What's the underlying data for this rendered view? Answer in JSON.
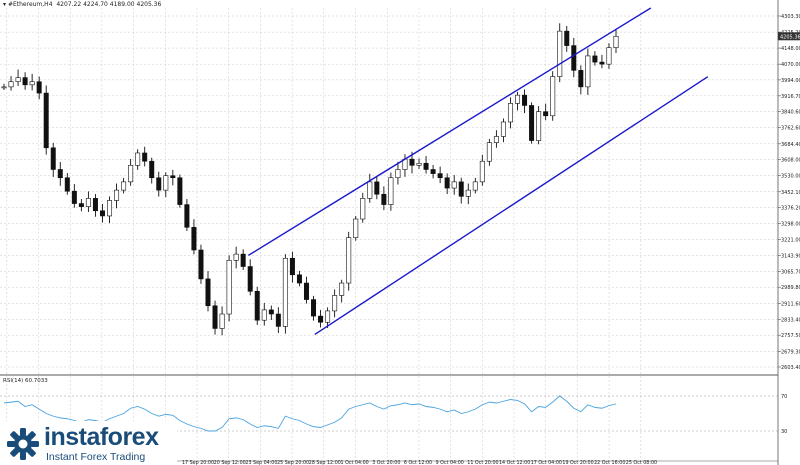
{
  "header": {
    "symbol": "#Ethereum,H4",
    "ohlc": "4207.22 4224.70 4189.00 4205.36"
  },
  "rsi_header": "RSI(14) 60.7033",
  "logo": {
    "brand": "instaforex",
    "tagline": "Instant Forex Trading"
  },
  "colors": {
    "channel": "#1a1acc",
    "candle": "#111111",
    "rsi": "#4aa3df",
    "grid": "#c9c9c9",
    "price_tag_bg": "#333333"
  },
  "current_price_label": "4205.36",
  "chart_data": {
    "type": "candlestick",
    "price_axis": {
      "ticks": [
        "4303.30",
        "4225.20",
        "4148.00",
        "4070.00",
        "3994.00",
        "3916.70",
        "3840.60",
        "3762.60",
        "3684.40",
        "3608.00",
        "3530.00",
        "3452.10",
        "3376.20",
        "3298.00",
        "3221.00",
        "3143.90",
        "3065.70",
        "2989.80",
        "2911.60",
        "2833.40",
        "2757.50",
        "2679.30",
        "2603.40"
      ]
    },
    "time_axis": {
      "labels": [
        "17 Sep 20:00",
        "20 Sep 12:00",
        "23 Sep 04:00",
        "25 Sep 20:00",
        "28 Sep 12:00",
        "1 Oct 04:00",
        "3 Oct 20:00",
        "6 Oct 12:00",
        "9 Oct 04:00",
        "11 Oct 20:00",
        "14 Oct 12:00",
        "17 Oct 04:00",
        "19 Oct 20:00",
        "22 Oct 16:00",
        "25 Oct 08:00"
      ]
    },
    "close_series": [
      3960,
      3985,
      4005,
      3970,
      3985,
      3930,
      3665,
      3560,
      3520,
      3455,
      3395,
      3380,
      3420,
      3360,
      3335,
      3410,
      3460,
      3500,
      3580,
      3640,
      3600,
      3520,
      3460,
      3530,
      3520,
      3390,
      3280,
      3170,
      3030,
      2900,
      2790,
      2860,
      3120,
      3150,
      3090,
      2970,
      2830,
      2880,
      2860,
      2800,
      3130,
      3050,
      3010,
      2930,
      2850,
      2820,
      2875,
      2950,
      3010,
      3230,
      3320,
      3420,
      3500,
      3440,
      3390,
      3520,
      3560,
      3610,
      3580,
      3590,
      3560,
      3540,
      3520,
      3470,
      3500,
      3430,
      3460,
      3500,
      3600,
      3690,
      3720,
      3790,
      3880,
      3920,
      3870,
      3700,
      3840,
      3820,
      4010,
      4230,
      4160,
      4040,
      3960,
      4110,
      4080,
      4070,
      4150,
      4205
    ],
    "channel": {
      "upper": {
        "start": [
          "23 Sep 04:00",
          3143.9
        ],
        "end": [
          "25 Oct 08:00",
          4303.3
        ]
      },
      "lower": {
        "start": [
          "28 Sep 12:00",
          2790
        ],
        "end": [
          "25 Oct 08:00",
          3995
        ]
      }
    },
    "rsi": {
      "levels": [
        "70",
        "30"
      ],
      "values": [
        62,
        63,
        64,
        58,
        60,
        55,
        50,
        47,
        45,
        44,
        42,
        40,
        43,
        42,
        40,
        44,
        47,
        50,
        56,
        58,
        55,
        50,
        47,
        49,
        48,
        42,
        38,
        35,
        33,
        30,
        30,
        34,
        44,
        45,
        43,
        38,
        34,
        36,
        35,
        33,
        47,
        44,
        42,
        38,
        35,
        34,
        37,
        40,
        45,
        55,
        58,
        60,
        62,
        58,
        55,
        59,
        60,
        62,
        60,
        61,
        58,
        57,
        55,
        52,
        54,
        50,
        52,
        55,
        60,
        63,
        62,
        64,
        66,
        65,
        61,
        52,
        58,
        57,
        63,
        70,
        64,
        56,
        52,
        60,
        57,
        56,
        59,
        61
      ]
    }
  }
}
